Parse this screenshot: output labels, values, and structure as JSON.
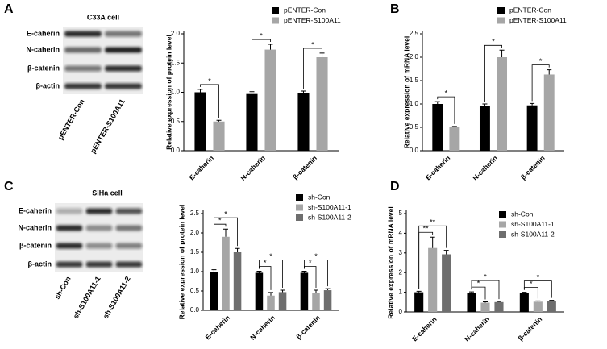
{
  "panel_labels": [
    "A",
    "B",
    "C",
    "D"
  ],
  "blots": [
    {
      "title": "C33A cell",
      "rows": [
        "E-caherin",
        "N-caherin",
        "β-catenin",
        "β-actin"
      ],
      "lanes": [
        "pENTER-Con",
        "pENTER-S100A11"
      ]
    },
    {
      "title": "SiHa cell",
      "rows": [
        "E-caherin",
        "N-caherin",
        "β-catenin",
        "β-actin"
      ],
      "lanes": [
        "sh-Con",
        "sh-S100A11-1",
        "sh-S100A11-2"
      ]
    }
  ],
  "chart_data": [
    {
      "type": "bar",
      "y_label": "Relative expression of protein level",
      "categories": [
        "E-caherin",
        "N-caherin",
        "β-catenin"
      ],
      "series": [
        {
          "name": "pENTER-Con",
          "color": "#000000",
          "values": [
            1.0,
            0.97,
            0.98
          ],
          "errors": [
            0.05,
            0.04,
            0.04
          ]
        },
        {
          "name": "pENTER-S100A11",
          "color": "#a6a6a6",
          "values": [
            0.5,
            1.73,
            1.6
          ],
          "errors": [
            0.02,
            0.09,
            0.07
          ]
        }
      ],
      "significance": [
        "*",
        "*",
        "*"
      ],
      "ylim": [
        0,
        2.0
      ],
      "yticks": [
        {
          "value": 0,
          "label": "0.0"
        },
        {
          "value": 0.5,
          "label": "0.5"
        },
        {
          "value": 1,
          "label": "1.0"
        },
        {
          "value": 1.5,
          "label": "1.5"
        },
        {
          "value": 2,
          "label": "2.0"
        }
      ]
    },
    {
      "type": "bar",
      "y_label": "Relative expression of mRNA level",
      "categories": [
        "E-caherin",
        "N-caherin",
        "β-catenin"
      ],
      "series": [
        {
          "name": "pENTER-Con",
          "color": "#000000",
          "values": [
            1.0,
            0.95,
            0.97
          ],
          "errors": [
            0.05,
            0.05,
            0.04
          ]
        },
        {
          "name": "pENTER-S100A11",
          "color": "#a6a6a6",
          "values": [
            0.5,
            2.0,
            1.63
          ],
          "errors": [
            0.02,
            0.15,
            0.1
          ]
        }
      ],
      "significance": [
        "*",
        "*",
        "*"
      ],
      "ylim": [
        0,
        2.5
      ],
      "yticks": [
        {
          "value": 0,
          "label": "0.0"
        },
        {
          "value": 0.5,
          "label": "0.5"
        },
        {
          "value": 1,
          "label": "1.0"
        },
        {
          "value": 1.5,
          "label": "1.5"
        },
        {
          "value": 2,
          "label": "2.0"
        },
        {
          "value": 2.5,
          "label": "2.5"
        }
      ]
    },
    {
      "type": "bar",
      "y_label": "Relative expression of protein level",
      "categories": [
        "E-caherin",
        "N-caherin",
        "β-catenin"
      ],
      "series": [
        {
          "name": "sh-Con",
          "color": "#000000",
          "values": [
            1.0,
            0.97,
            0.97
          ],
          "errors": [
            0.05,
            0.04,
            0.04
          ]
        },
        {
          "name": "sh-S100A11-1",
          "color": "#a6a6a6",
          "values": [
            1.9,
            0.38,
            0.45
          ],
          "errors": [
            0.2,
            0.08,
            0.07
          ]
        },
        {
          "name": "sh-S100A11-2",
          "color": "#6e6e6e",
          "values": [
            1.5,
            0.47,
            0.52
          ],
          "errors": [
            0.1,
            0.05,
            0.04
          ]
        }
      ],
      "significance": [
        [
          "*",
          "*"
        ],
        [
          "*",
          "*"
        ],
        [
          "*",
          "*"
        ]
      ],
      "ylim": [
        0,
        2.5
      ],
      "yticks": [
        {
          "value": 0,
          "label": "0.0"
        },
        {
          "value": 0.5,
          "label": "0.5"
        },
        {
          "value": 1,
          "label": "1.0"
        },
        {
          "value": 1.5,
          "label": "1.5"
        },
        {
          "value": 2,
          "label": "2.0"
        },
        {
          "value": 2.5,
          "label": "2.5"
        }
      ]
    },
    {
      "type": "bar",
      "y_label": "Relative expression of mRNA level",
      "categories": [
        "E-caherin",
        "N-caherin",
        "β-catenin"
      ],
      "series": [
        {
          "name": "sh-Con",
          "color": "#000000",
          "values": [
            1.0,
            0.97,
            0.95
          ],
          "errors": [
            0.05,
            0.05,
            0.05
          ]
        },
        {
          "name": "sh-S100A11-1",
          "color": "#a6a6a6",
          "values": [
            3.25,
            0.47,
            0.52
          ],
          "errors": [
            0.55,
            0.04,
            0.04
          ]
        },
        {
          "name": "sh-S100A11-2",
          "color": "#6e6e6e",
          "values": [
            2.93,
            0.5,
            0.55
          ],
          "errors": [
            0.2,
            0.03,
            0.04
          ]
        }
      ],
      "significance": [
        [
          "**",
          "**"
        ],
        [
          "*",
          "*"
        ],
        [
          "*",
          "*"
        ]
      ],
      "ylim": [
        0,
        5
      ],
      "yticks": [
        0,
        1,
        2,
        3,
        4,
        5
      ]
    }
  ]
}
